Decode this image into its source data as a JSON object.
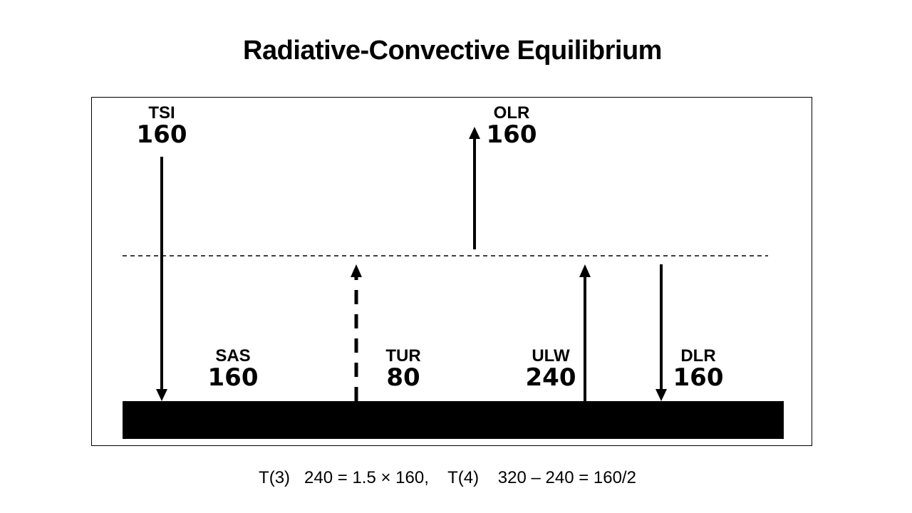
{
  "title": "Radiative-Convective Equilibrium",
  "fluxes": {
    "tsi": {
      "name": "TSI",
      "value": "160",
      "direction": "down"
    },
    "olr": {
      "name": "OLR",
      "value": "160",
      "direction": "up"
    },
    "sas": {
      "name": "SAS",
      "value": "160"
    },
    "tur": {
      "name": "TUR",
      "value": "80",
      "direction": "up",
      "style": "dashed"
    },
    "ulw": {
      "name": "ULW",
      "value": "240",
      "direction": "up"
    },
    "dlr": {
      "name": "DLR",
      "value": "160",
      "direction": "down"
    }
  },
  "equation": "T(3)   240 = 1.5 × 160,    T(4)    320 – 240 = 160/2",
  "colors": {
    "ink": "#000000",
    "background": "#ffffff"
  }
}
